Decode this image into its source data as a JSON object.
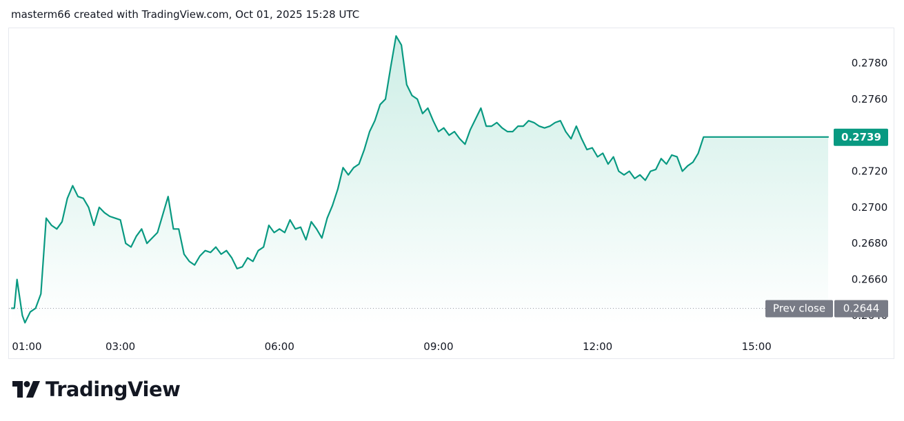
{
  "header": {
    "caption": "masterm66 created with TradingView.com, Oct 01, 2025 15:28 UTC"
  },
  "branding": {
    "logo_text": "TradingView",
    "logo_icon": "tradingview-logo-icon"
  },
  "colors": {
    "line": "#089981",
    "area_top": "#cdeee6",
    "area_bottom": "#ffffff",
    "price_badge": "#089981",
    "prev_close_badge": "#787b86",
    "prev_close_line": "#9598a1",
    "text": "#131722"
  },
  "chart_data": {
    "type": "area",
    "x_tick_labels": [
      "01:00",
      "03:00",
      "06:00",
      "09:00",
      "12:00",
      "15:00"
    ],
    "y_tick_labels": [
      "0.2780",
      "0.2760",
      "0.2720",
      "0.2700",
      "0.2680",
      "0.2660"
    ],
    "partially_hidden_tick_label": "0.2640",
    "ylim": [
      0.2635,
      0.2797
    ],
    "x_range_hours": [
      0.95,
      16.35
    ],
    "last_price": 0.2739,
    "last_price_label": "0.2739",
    "prev_close": 0.2644,
    "prev_close_caption": "Prev close",
    "prev_close_label": "0.2644",
    "series": [
      {
        "x": [
          0.95,
          1.0,
          1.05,
          1.1,
          1.15,
          1.2,
          1.3,
          1.4,
          1.5,
          1.6,
          1.7,
          1.8,
          1.9,
          2.0,
          2.1,
          2.2,
          2.3,
          2.4,
          2.5,
          2.6,
          2.7,
          2.8,
          2.9,
          3.0,
          3.1,
          3.2,
          3.3,
          3.4,
          3.5,
          3.6,
          3.7,
          3.8,
          3.9,
          4.0,
          4.1,
          4.2,
          4.3,
          4.4,
          4.5,
          4.6,
          4.7,
          4.8,
          4.9,
          5.0,
          5.1,
          5.2,
          5.3,
          5.4,
          5.5,
          5.6,
          5.7,
          5.8,
          5.9,
          6.0,
          6.1,
          6.2,
          6.3,
          6.4,
          6.5,
          6.6,
          6.7,
          6.8,
          6.9,
          7.0,
          7.1,
          7.2,
          7.3,
          7.4,
          7.5,
          7.6,
          7.7,
          7.8,
          7.9,
          8.0,
          8.1,
          8.2,
          8.3,
          8.4,
          8.5,
          8.6,
          8.7,
          8.8,
          8.9,
          9.0,
          9.1,
          9.2,
          9.3,
          9.4,
          9.5,
          9.6,
          9.7,
          9.8,
          9.9,
          10.0,
          10.1,
          10.2,
          10.3,
          10.4,
          10.5,
          10.6,
          10.7,
          10.8,
          10.9,
          11.0,
          11.1,
          11.2,
          11.3,
          11.4,
          11.5,
          11.6,
          11.7,
          11.8,
          11.9,
          12.0,
          12.1,
          12.2,
          12.3,
          12.4,
          12.5,
          12.6,
          12.7,
          12.8,
          12.9,
          13.0,
          13.1,
          13.2,
          13.3,
          13.4,
          13.5,
          13.6,
          13.7,
          13.8,
          13.9,
          14.0,
          14.1,
          14.2,
          14.3,
          14.4,
          14.5,
          14.6,
          14.7,
          14.8,
          14.9,
          15.0,
          15.1,
          15.2,
          15.3,
          15.4,
          15.5,
          15.6,
          15.7,
          15.8,
          15.9,
          16.0,
          16.1,
          16.2,
          16.3,
          16.35
        ],
        "y": [
          0.2644,
          0.2644,
          0.266,
          0.265,
          0.264,
          0.2636,
          0.2642,
          0.2644,
          0.2652,
          0.2694,
          0.269,
          0.2688,
          0.2692,
          0.2705,
          0.2712,
          0.2706,
          0.2705,
          0.27,
          0.269,
          0.27,
          0.2697,
          0.2695,
          0.2694,
          0.2693,
          0.268,
          0.2678,
          0.2684,
          0.2688,
          0.268,
          0.2683,
          0.2686,
          0.2696,
          0.2706,
          0.2688,
          0.2688,
          0.2674,
          0.267,
          0.2668,
          0.2673,
          0.2676,
          0.2675,
          0.2678,
          0.2674,
          0.2676,
          0.2672,
          0.2666,
          0.2667,
          0.2672,
          0.267,
          0.2676,
          0.2678,
          0.269,
          0.2686,
          0.2688,
          0.2686,
          0.2693,
          0.2688,
          0.2689,
          0.2682,
          0.2692,
          0.2688,
          0.2683,
          0.2694,
          0.2701,
          0.271,
          0.2722,
          0.2718,
          0.2722,
          0.2724,
          0.2732,
          0.2742,
          0.2748,
          0.2757,
          0.276,
          0.2778,
          0.2795,
          0.279,
          0.2768,
          0.2762,
          0.276,
          0.2752,
          0.2755,
          0.2748,
          0.2742,
          0.2744,
          0.274,
          0.2742,
          0.2738,
          0.2735,
          0.2743,
          0.2749,
          0.2755,
          0.2745,
          0.2745,
          0.2747,
          0.2744,
          0.2742,
          0.2742,
          0.2745,
          0.2745,
          0.2748,
          0.2747,
          0.2745,
          0.2744,
          0.2745,
          0.2747,
          0.2748,
          0.2742,
          0.2738,
          0.2745,
          0.2738,
          0.2732,
          0.2733,
          0.2728,
          0.273,
          0.2724,
          0.2728,
          0.272,
          0.2718,
          0.272,
          0.2716,
          0.2718,
          0.2715,
          0.272,
          0.2721,
          0.2727,
          0.2724,
          0.2729,
          0.2728,
          0.272,
          0.2723,
          0.2725,
          0.273,
          0.2739,
          0.2739,
          0.2739,
          0.2739,
          0.2739,
          0.2739,
          0.2739,
          0.2739,
          0.2739,
          0.2739,
          0.2739,
          0.2739,
          0.2739,
          0.2739,
          0.2739,
          0.2739,
          0.2739,
          0.2739,
          0.2739,
          0.2739,
          0.2739,
          0.2739,
          0.2739,
          0.2739,
          0.2739
        ]
      }
    ],
    "grid": false,
    "legend": "none"
  }
}
